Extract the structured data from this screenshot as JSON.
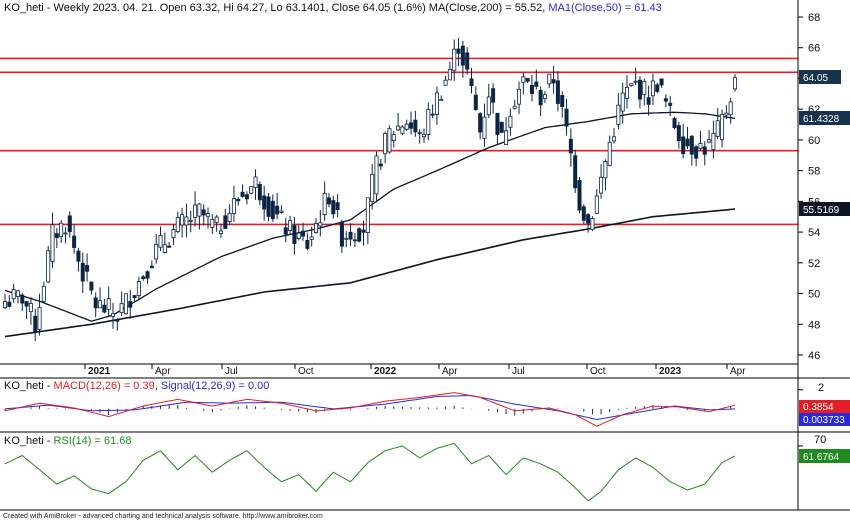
{
  "colors": {
    "bull_candle": "#ffffff",
    "bear_candle": "#0b2545",
    "candle_outline": "#0b2545",
    "ma50": "#0b1526",
    "ma200": "#0b1526",
    "hline": "#e31e24",
    "macd": "#e31e24",
    "signal": "#2a2ad6",
    "hist": "#1b2b6b",
    "rsi": "#1f8a1f",
    "price_badge": "#17324d",
    "ma50_badge": "#17324d",
    "ma200_badge": "#0b1526",
    "macd_badge": "#e31e24",
    "signal_badge": "#2a2ad6",
    "rsi_badge": "#1f8a1f"
  },
  "panels": {
    "price": {
      "title_prefix": "KO_heti - Weekly 2023. 04. 21. Open 63.32, Hi 64.27, Lo 63.1401, Close 64.05 (1.6%) ",
      "ma200_label": "MA(Close,200) = 55.52",
      "ma50_label": "MA1(Close,50) = 61.43",
      "badges": {
        "price": "64.05",
        "ma50": "61.4328",
        "ma200": "55.5169"
      }
    },
    "macd": {
      "title_prefix": "KO_heti - ",
      "macd_label": "MACD(12,26) = 0.39",
      "signal_label": "Signal(12,26,9) = 0.00",
      "tick": "2",
      "badges": {
        "macd": "0.3854",
        "signal": "0.003733"
      }
    },
    "rsi": {
      "title_prefix": "KO_heti - ",
      "rsi_label": "RSI(14) = 61.68",
      "tick": "70",
      "badge": "61.6764"
    }
  },
  "footer": "Created with AmiBroker - advanced charting and technical analysis software. http://www.amibroker.com",
  "chart_data": [
    {
      "type": "candlestick",
      "title": "KO_heti - Weekly 2023. 04. 21. Open 63.32, Hi 64.27, Lo 63.1401, Close 64.05 (1.6%)",
      "x_tick_labels": [
        "2021",
        "Apr",
        "Jul",
        "Oct",
        "2022",
        "Apr",
        "Jul",
        "Oct",
        "2023",
        "Apr"
      ],
      "ylim": [
        44.5,
        69
      ],
      "y_ticks": [
        46,
        48,
        50,
        52,
        54,
        56,
        58,
        60,
        62,
        64,
        66,
        68
      ],
      "horizontal_lines": [
        65.3,
        64.4,
        59.3,
        54.5
      ],
      "candle_close_path": [
        {
          "i": 0,
          "v": 49.5
        },
        {
          "i": 4,
          "v": 49.8
        },
        {
          "i": 7,
          "v": 48.0
        },
        {
          "i": 11,
          "v": 53.8
        },
        {
          "i": 14,
          "v": 54.6
        },
        {
          "i": 18,
          "v": 51.4
        },
        {
          "i": 21,
          "v": 49.3
        },
        {
          "i": 26,
          "v": 48.6
        },
        {
          "i": 30,
          "v": 50.3
        },
        {
          "i": 35,
          "v": 52.8
        },
        {
          "i": 40,
          "v": 54.3
        },
        {
          "i": 45,
          "v": 55.3
        },
        {
          "i": 49,
          "v": 54.2
        },
        {
          "i": 54,
          "v": 56.2
        },
        {
          "i": 58,
          "v": 57.2
        },
        {
          "i": 62,
          "v": 55.3
        },
        {
          "i": 66,
          "v": 54.0
        },
        {
          "i": 70,
          "v": 53.2
        },
        {
          "i": 75,
          "v": 56.5
        },
        {
          "i": 78,
          "v": 53.8
        },
        {
          "i": 83,
          "v": 54.3
        },
        {
          "i": 86,
          "v": 58.3
        },
        {
          "i": 89,
          "v": 60.4
        },
        {
          "i": 93,
          "v": 61.3
        },
        {
          "i": 96,
          "v": 60.1
        },
        {
          "i": 100,
          "v": 62.7
        },
        {
          "i": 103,
          "v": 64.6
        },
        {
          "i": 105,
          "v": 66.3
        },
        {
          "i": 107,
          "v": 64.3
        },
        {
          "i": 110,
          "v": 60.6
        },
        {
          "i": 112,
          "v": 63.2
        },
        {
          "i": 115,
          "v": 59.9
        },
        {
          "i": 117,
          "v": 62.3
        },
        {
          "i": 120,
          "v": 63.8
        },
        {
          "i": 124,
          "v": 62.8
        },
        {
          "i": 127,
          "v": 64.0
        },
        {
          "i": 130,
          "v": 60.5
        },
        {
          "i": 133,
          "v": 56.0
        },
        {
          "i": 135,
          "v": 54.6
        },
        {
          "i": 137,
          "v": 56.2
        },
        {
          "i": 140,
          "v": 59.8
        },
        {
          "i": 143,
          "v": 62.8
        },
        {
          "i": 146,
          "v": 63.6
        },
        {
          "i": 149,
          "v": 62.9
        },
        {
          "i": 151,
          "v": 63.8
        },
        {
          "i": 154,
          "v": 61.6
        },
        {
          "i": 157,
          "v": 59.9
        },
        {
          "i": 160,
          "v": 59.5
        },
        {
          "i": 163,
          "v": 59.6
        },
        {
          "i": 165,
          "v": 60.5
        },
        {
          "i": 167,
          "v": 62.0
        },
        {
          "i": 169,
          "v": 64.05
        }
      ],
      "series": [
        {
          "name": "MA1(Close,50)",
          "points": [
            {
              "i": 0,
              "v": 50.2
            },
            {
              "i": 8,
              "v": 49.5
            },
            {
              "i": 20,
              "v": 48.2
            },
            {
              "i": 25,
              "v": 48.6
            },
            {
              "i": 35,
              "v": 50.3
            },
            {
              "i": 50,
              "v": 52.4
            },
            {
              "i": 62,
              "v": 53.6
            },
            {
              "i": 72,
              "v": 54.2
            },
            {
              "i": 80,
              "v": 54.8
            },
            {
              "i": 90,
              "v": 56.8
            },
            {
              "i": 100,
              "v": 58.0
            },
            {
              "i": 112,
              "v": 59.5
            },
            {
              "i": 125,
              "v": 60.8
            },
            {
              "i": 135,
              "v": 61.2
            },
            {
              "i": 145,
              "v": 61.7
            },
            {
              "i": 155,
              "v": 61.8
            },
            {
              "i": 162,
              "v": 61.7
            },
            {
              "i": 169,
              "v": 61.4
            }
          ]
        },
        {
          "name": "MA(Close,200)",
          "points": [
            {
              "i": 0,
              "v": 47.2
            },
            {
              "i": 20,
              "v": 48.0
            },
            {
              "i": 40,
              "v": 49.0
            },
            {
              "i": 60,
              "v": 50.1
            },
            {
              "i": 80,
              "v": 50.7
            },
            {
              "i": 100,
              "v": 52.2
            },
            {
              "i": 120,
              "v": 53.5
            },
            {
              "i": 135,
              "v": 54.2
            },
            {
              "i": 150,
              "v": 55.0
            },
            {
              "i": 169,
              "v": 55.5
            }
          ]
        }
      ]
    },
    {
      "type": "line",
      "title": "KO_heti - MACD(12,26) = 0.39, Signal(12,26,9) = 0.00",
      "ylim": [
        -2.2,
        2.6
      ],
      "y_ticks": [
        2
      ],
      "series": [
        {
          "name": "MACD(12,26)",
          "points": [
            {
              "i": 0,
              "v": -0.2
            },
            {
              "i": 8,
              "v": 0.6
            },
            {
              "i": 16,
              "v": 0.1
            },
            {
              "i": 24,
              "v": -0.8
            },
            {
              "i": 32,
              "v": 0.3
            },
            {
              "i": 40,
              "v": 1.0
            },
            {
              "i": 48,
              "v": 0.3
            },
            {
              "i": 56,
              "v": 1.0
            },
            {
              "i": 64,
              "v": 0.6
            },
            {
              "i": 72,
              "v": -0.2
            },
            {
              "i": 80,
              "v": 0.1
            },
            {
              "i": 88,
              "v": 0.8
            },
            {
              "i": 96,
              "v": 1.2
            },
            {
              "i": 104,
              "v": 1.7
            },
            {
              "i": 110,
              "v": 1.2
            },
            {
              "i": 118,
              "v": -0.2
            },
            {
              "i": 126,
              "v": 0.1
            },
            {
              "i": 132,
              "v": -0.6
            },
            {
              "i": 137,
              "v": -1.8
            },
            {
              "i": 143,
              "v": -0.6
            },
            {
              "i": 150,
              "v": 0.3
            },
            {
              "i": 156,
              "v": 0.2
            },
            {
              "i": 163,
              "v": -0.3
            },
            {
              "i": 169,
              "v": 0.39
            }
          ]
        },
        {
          "name": "Signal(12,26,9)",
          "points": [
            {
              "i": 0,
              "v": 0.0
            },
            {
              "i": 10,
              "v": 0.4
            },
            {
              "i": 20,
              "v": -0.2
            },
            {
              "i": 30,
              "v": -0.1
            },
            {
              "i": 42,
              "v": 0.7
            },
            {
              "i": 52,
              "v": 0.6
            },
            {
              "i": 64,
              "v": 0.7
            },
            {
              "i": 76,
              "v": 0.0
            },
            {
              "i": 88,
              "v": 0.5
            },
            {
              "i": 100,
              "v": 1.3
            },
            {
              "i": 108,
              "v": 1.4
            },
            {
              "i": 118,
              "v": 0.5
            },
            {
              "i": 128,
              "v": -0.2
            },
            {
              "i": 137,
              "v": -1.1
            },
            {
              "i": 146,
              "v": -0.4
            },
            {
              "i": 155,
              "v": 0.3
            },
            {
              "i": 163,
              "v": -0.1
            },
            {
              "i": 169,
              "v": 0.0
            }
          ]
        }
      ]
    },
    {
      "type": "line",
      "title": "KO_heti - RSI(14) = 61.68",
      "ylim": [
        18,
        80
      ],
      "y_ticks": [
        70
      ],
      "series": [
        {
          "name": "RSI(14)",
          "points": [
            {
              "i": 0,
              "v": 55
            },
            {
              "i": 4,
              "v": 62
            },
            {
              "i": 8,
              "v": 50
            },
            {
              "i": 12,
              "v": 38
            },
            {
              "i": 16,
              "v": 45
            },
            {
              "i": 20,
              "v": 34
            },
            {
              "i": 24,
              "v": 30
            },
            {
              "i": 28,
              "v": 40
            },
            {
              "i": 32,
              "v": 58
            },
            {
              "i": 36,
              "v": 66
            },
            {
              "i": 40,
              "v": 50
            },
            {
              "i": 44,
              "v": 62
            },
            {
              "i": 48,
              "v": 48
            },
            {
              "i": 52,
              "v": 58
            },
            {
              "i": 56,
              "v": 66
            },
            {
              "i": 60,
              "v": 52
            },
            {
              "i": 64,
              "v": 40
            },
            {
              "i": 68,
              "v": 46
            },
            {
              "i": 72,
              "v": 32
            },
            {
              "i": 76,
              "v": 48
            },
            {
              "i": 80,
              "v": 40
            },
            {
              "i": 84,
              "v": 56
            },
            {
              "i": 88,
              "v": 66
            },
            {
              "i": 92,
              "v": 70
            },
            {
              "i": 96,
              "v": 60
            },
            {
              "i": 100,
              "v": 68
            },
            {
              "i": 104,
              "v": 72
            },
            {
              "i": 108,
              "v": 55
            },
            {
              "i": 112,
              "v": 62
            },
            {
              "i": 116,
              "v": 46
            },
            {
              "i": 120,
              "v": 60
            },
            {
              "i": 124,
              "v": 55
            },
            {
              "i": 128,
              "v": 48
            },
            {
              "i": 132,
              "v": 35
            },
            {
              "i": 135,
              "v": 24
            },
            {
              "i": 138,
              "v": 32
            },
            {
              "i": 142,
              "v": 50
            },
            {
              "i": 146,
              "v": 60
            },
            {
              "i": 150,
              "v": 52
            },
            {
              "i": 154,
              "v": 40
            },
            {
              "i": 158,
              "v": 33
            },
            {
              "i": 162,
              "v": 38
            },
            {
              "i": 166,
              "v": 56
            },
            {
              "i": 169,
              "v": 61.68
            }
          ]
        }
      ]
    }
  ]
}
